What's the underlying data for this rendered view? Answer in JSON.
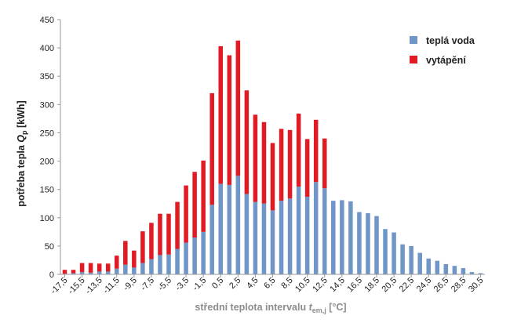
{
  "chart_data": {
    "type": "bar",
    "stacked": true,
    "xlabel": {
      "main": "střední teplota intervalu ",
      "symbol": "t",
      "subscript": "em,j",
      "unit": " [°C]"
    },
    "ylabel": {
      "main": "potřeba tepla ",
      "symbol": "Q",
      "subscript": "p",
      "unit": " [kWh]"
    },
    "ylim": [
      0,
      450
    ],
    "yticks": [
      "0",
      "50",
      "100",
      "150",
      "200",
      "250",
      "300",
      "350",
      "400",
      "450"
    ],
    "legend_position": "top-right",
    "grid": false,
    "x": [
      -17.5,
      -16.5,
      -15.5,
      -14.5,
      -13.5,
      -12.5,
      -11.5,
      -10.5,
      -9.5,
      -8.5,
      -7.5,
      -6.5,
      -5.5,
      -4.5,
      -3.5,
      -2.5,
      -1.5,
      -0.5,
      0.5,
      1.5,
      2.5,
      3.5,
      4.5,
      5.5,
      6.5,
      7.5,
      8.5,
      9.5,
      10.5,
      11.5,
      12.5,
      13.5,
      14.5,
      15.5,
      16.5,
      17.5,
      18.5,
      19.5,
      20.5,
      21.5,
      22.5,
      23.5,
      24.5,
      25.5,
      26.5,
      27.5,
      28.5,
      29.5,
      30.5
    ],
    "xtick_labels": [
      "-17,5",
      "-15,5",
      "-13,5",
      "-11,5",
      "-9,5",
      "-7,5",
      "-5,5",
      "-3,5",
      "-1,5",
      "0,5",
      "2,5",
      "4,5",
      "6,5",
      "8,5",
      "10,5",
      "12,5",
      "14,5",
      "16,5",
      "18,5",
      "20,5",
      "22,5",
      "24,5",
      "26,5",
      "28,5",
      "30,5"
    ],
    "series": [
      {
        "name": "teplá voda",
        "color": "#7096c8",
        "values": [
          1,
          2,
          4,
          3,
          5,
          5,
          10,
          17,
          12,
          20,
          27,
          34,
          35,
          45,
          56,
          65,
          75,
          123,
          160,
          158,
          174,
          142,
          128,
          125,
          113,
          130,
          134,
          155,
          137,
          163,
          152,
          130,
          131,
          129,
          110,
          108,
          103,
          80,
          74,
          53,
          50,
          38,
          28,
          24,
          18,
          15,
          11,
          4,
          2
        ]
      },
      {
        "name": "vytápění",
        "color": "#e01b24",
        "values": [
          7,
          6,
          16,
          17,
          14,
          14,
          23,
          42,
          30,
          56,
          64,
          73,
          72,
          83,
          101,
          116,
          126,
          197,
          243,
          229,
          239,
          183,
          154,
          144,
          119,
          127,
          121,
          129,
          102,
          110,
          88,
          0,
          0,
          0,
          0,
          0,
          0,
          0,
          0,
          0,
          0,
          0,
          0,
          0,
          0,
          0,
          0,
          0,
          0
        ]
      }
    ]
  }
}
